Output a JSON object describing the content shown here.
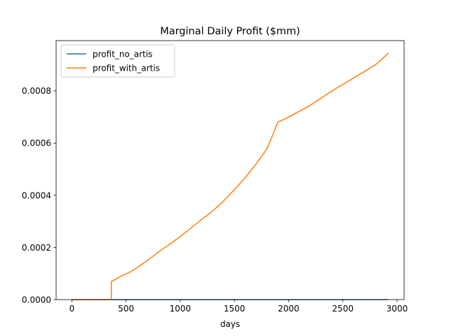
{
  "chart_data": {
    "type": "line",
    "title": "Marginal Daily Profit ($mm)",
    "xlabel": "days",
    "ylabel": "",
    "xlim": [
      -145,
      3065
    ],
    "ylim": [
      0,
      0.000993
    ],
    "xticks": [
      0,
      500,
      1000,
      1500,
      2000,
      2500,
      3000
    ],
    "xtick_labels": [
      "0",
      "500",
      "1000",
      "1500",
      "2000",
      "2500",
      "3000"
    ],
    "yticks": [
      0,
      0.0002,
      0.0004,
      0.0006,
      0.0008
    ],
    "ytick_labels": [
      "0.0000",
      "0.0002",
      "0.0004",
      "0.0006",
      "0.0008"
    ],
    "grid": false,
    "legend_position": "top-left",
    "series": [
      {
        "name": "profit_no_artis",
        "color": "#1f77b4",
        "x": [
          0,
          2920
        ],
        "y": [
          0,
          0
        ]
      },
      {
        "name": "profit_with_artis",
        "color": "#ff7f0e",
        "x": [
          0,
          364,
          365,
          400,
          450,
          500,
          550,
          600,
          700,
          800,
          900,
          1000,
          1100,
          1200,
          1300,
          1400,
          1500,
          1600,
          1700,
          1800,
          1850,
          1900,
          2000,
          2200,
          2400,
          2600,
          2800,
          2920
        ],
        "y": [
          0,
          0,
          7e-05,
          7.7e-05,
          8.9e-05,
          9.85e-05,
          0.000109,
          0.000122,
          0.000151,
          0.000183,
          0.000212,
          0.000242,
          0.000275,
          0.000308,
          0.00034,
          0.000378,
          0.000422,
          0.000468,
          0.00052,
          0.000578,
          0.000628,
          0.00068,
          0.0007,
          0.000745,
          0.0008,
          0.00085,
          0.0009,
          0.000945
        ]
      }
    ]
  }
}
